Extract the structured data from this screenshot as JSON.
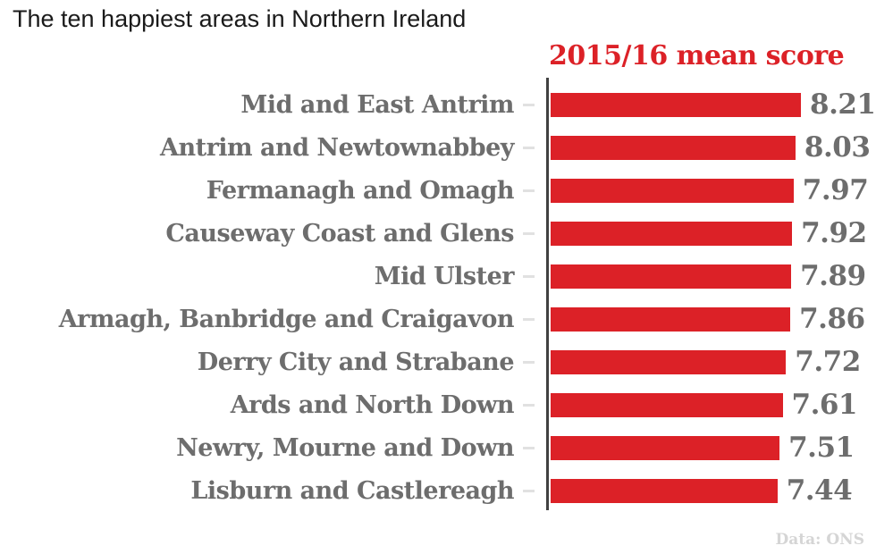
{
  "title": "The ten happiest areas in Northern Ireland",
  "legend": "2015/16 mean score",
  "source": "Data: ONS",
  "colors": {
    "bar": "#dc2127",
    "label": "#6d6d6d",
    "value": "#6d6d6d",
    "axis": "#414141",
    "tick": "#e1e1e1",
    "title": "#1a1a1a",
    "source": "#d5d5d5"
  },
  "chart_data": {
    "type": "bar",
    "orientation": "horizontal",
    "title": "The ten happiest areas in Northern Ireland",
    "series_label": "2015/16 mean score",
    "categories": [
      "Mid and East Antrim",
      "Antrim and Newtownabbey",
      "Fermanagh and Omagh",
      "Causeway Coast and Glens",
      "Mid Ulster",
      "Armagh, Banbridge and Craigavon",
      "Derry City and Strabane",
      "Ards and North Down",
      "Newry, Mourne and Down",
      "Lisburn and Castlereagh"
    ],
    "values": [
      8.21,
      8.03,
      7.97,
      7.92,
      7.89,
      7.86,
      7.72,
      7.61,
      7.51,
      7.44
    ],
    "value_labels": [
      "8.21",
      "8.03",
      "7.97",
      "7.92",
      "7.89",
      "7.86",
      "7.72",
      "7.61",
      "7.51",
      "7.44"
    ],
    "xlabel": "",
    "ylabel": "",
    "xlim": [
      0,
      8.21
    ],
    "grid": false,
    "legend_position": "top-right-above-bars",
    "source": "Data: ONS"
  }
}
